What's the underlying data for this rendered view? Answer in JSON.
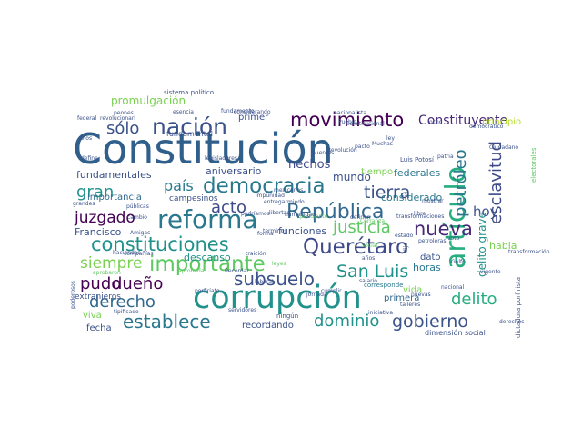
{
  "word_cloud": {
    "words": [
      {
        "text": "Constitución",
        "color": "#2f5f8a"
      },
      {
        "text": "corrupción",
        "color": "#21918c"
      },
      {
        "text": "reforma",
        "color": "#2a788e"
      },
      {
        "text": "artículo",
        "color": "#27ad81"
      },
      {
        "text": "nación",
        "color": "#3b528b"
      },
      {
        "text": "democracia",
        "color": "#2a788e"
      },
      {
        "text": "movimiento",
        "color": "#440154"
      },
      {
        "text": "constituciones",
        "color": "#21918c"
      },
      {
        "text": "Querétaro",
        "color": "#3e4a89"
      },
      {
        "text": "República",
        "color": "#31688e"
      },
      {
        "text": "importante",
        "color": "#5ec962"
      },
      {
        "text": "nueva",
        "color": "#482878"
      },
      {
        "text": "tierra",
        "color": "#3b528b"
      },
      {
        "text": "petróleo",
        "color": "#2a788e"
      },
      {
        "text": "esclavitud",
        "color": "#3e4a89"
      },
      {
        "text": "establece",
        "color": "#2a788e"
      },
      {
        "text": "gobierno",
        "color": "#3b528b"
      },
      {
        "text": "subsuelo",
        "color": "#3b528b"
      },
      {
        "text": "San Luis",
        "color": "#21918c"
      },
      {
        "text": "justicia",
        "color": "#5ec962"
      },
      {
        "text": "pudo",
        "color": "#440154"
      },
      {
        "text": "dueño",
        "color": "#440154"
      },
      {
        "text": "derecho",
        "color": "#31688e"
      },
      {
        "text": "delito",
        "color": "#27ad81"
      },
      {
        "text": "gran",
        "color": "#21918c"
      },
      {
        "text": "juzgado",
        "color": "#440154"
      },
      {
        "text": "acto",
        "color": "#3e4a89"
      },
      {
        "text": "país",
        "color": "#2a788e"
      },
      {
        "text": "sólo",
        "color": "#3b528b"
      },
      {
        "text": "siempre",
        "color": "#7ad151"
      },
      {
        "text": "hoy",
        "color": "#3b528b"
      },
      {
        "text": "dominio",
        "color": "#21918c"
      },
      {
        "text": "Constituyente",
        "color": "#482878"
      },
      {
        "text": "delito grave",
        "color": "#21918c"
      },
      {
        "text": "hechos",
        "color": "#3e4a89"
      },
      {
        "text": "mundo",
        "color": "#3b528b"
      },
      {
        "text": "promulgación",
        "color": "#7ad151"
      },
      {
        "text": "fundamentales",
        "color": "#3b528b"
      },
      {
        "text": "considerado",
        "color": "#2a788e"
      },
      {
        "text": "federales",
        "color": "#2a788e"
      },
      {
        "text": "funciones",
        "color": "#3b528b"
      },
      {
        "text": "aniversario",
        "color": "#3b528b"
      },
      {
        "text": "importancia",
        "color": "#31688e"
      },
      {
        "text": "descanso",
        "color": "#21918c"
      },
      {
        "text": "Francisco",
        "color": "#3b528b"
      },
      {
        "text": "habla",
        "color": "#7ad151"
      },
      {
        "text": "horas",
        "color": "#2a788e"
      },
      {
        "text": "dato",
        "color": "#3b528b"
      },
      {
        "text": "primera",
        "color": "#31688e"
      },
      {
        "text": "vida",
        "color": "#7ad151"
      },
      {
        "text": "viva",
        "color": "#7ad151"
      },
      {
        "text": "fecha",
        "color": "#3b528b"
      },
      {
        "text": "recordando",
        "color": "#3b528b"
      },
      {
        "text": "primer",
        "color": "#3b528b"
      },
      {
        "text": "campesinos",
        "color": "#3b528b"
      },
      {
        "text": "tiempo",
        "color": "#7ad151"
      },
      {
        "text": "extranjeros",
        "color": "#3b528b"
      },
      {
        "text": "fundamental",
        "color": "#3b528b"
      },
      {
        "text": "principio",
        "color": "#b5de2b"
      },
      {
        "text": "dimensión social",
        "color": "#3b528b"
      },
      {
        "text": "sistema político",
        "color": "#3b528b"
      },
      {
        "text": "Luis Potosí",
        "color": "#3b528b"
      },
      {
        "text": "ningún",
        "color": "#3b528b"
      },
      {
        "text": "corresponde",
        "color": "#2a788e"
      },
      {
        "text": "dictadura porfirista",
        "color": "#3b528b"
      },
      {
        "text": "electorales",
        "color": "#5ec962"
      },
      {
        "text": "democrático",
        "color": "#3b528b"
      },
      {
        "text": "Revolución",
        "color": "#3b528b"
      },
      {
        "text": "legisladores",
        "color": "#3b528b"
      },
      {
        "text": "Constitucional",
        "color": "#3b528b"
      },
      {
        "text": "transformaciones",
        "color": "#3b528b"
      },
      {
        "text": "considerando",
        "color": "#3b528b"
      },
      {
        "text": "esencia",
        "color": "#3b528b"
      },
      {
        "text": "revolucionari",
        "color": "#3b528b"
      },
      {
        "text": "federal",
        "color": "#3b528b"
      },
      {
        "text": "haciendas",
        "color": "#3b528b"
      },
      {
        "text": "porfiriato",
        "color": "#3b528b"
      },
      {
        "text": "Ciudadano",
        "color": "#3b528b"
      },
      {
        "text": "petroleras",
        "color": "#3b528b"
      },
      {
        "text": "patria",
        "color": "#3b528b"
      },
      {
        "text": "compañías",
        "color": "#3b528b"
      },
      {
        "text": "tipificado",
        "color": "#3b528b"
      },
      {
        "text": "Golfo",
        "color": "#3b528b"
      },
      {
        "text": "impunidad",
        "color": "#3b528b"
      },
      {
        "text": "peones",
        "color": "#3b528b"
      },
      {
        "text": "Dios",
        "color": "#3b528b"
      },
      {
        "text": "define",
        "color": "#3b528b"
      },
      {
        "text": "aprobaron",
        "color": "#5ec962"
      },
      {
        "text": "poderosos",
        "color": "#3b528b"
      },
      {
        "text": "Amigas",
        "color": "#3b528b"
      },
      {
        "text": "pendiente",
        "color": "#5ec962"
      },
      {
        "text": "aprobada",
        "color": "#5ec962"
      },
      {
        "text": "humanidad",
        "color": "#3b528b"
      },
      {
        "text": "entregar",
        "color": "#3b528b"
      },
      {
        "text": "miedo",
        "color": "#3b528b"
      },
      {
        "text": "grandes",
        "color": "#3b528b"
      },
      {
        "text": "públicas",
        "color": "#3b528b"
      },
      {
        "text": "cambio",
        "color": "#3b528b"
      },
      {
        "text": "podríamos",
        "color": "#3b528b"
      },
      {
        "text": "libre",
        "color": "#3b528b"
      },
      {
        "text": "talleres",
        "color": "#3b528b"
      },
      {
        "text": "servidores",
        "color": "#3b528b"
      },
      {
        "text": "salario",
        "color": "#3b528b"
      },
      {
        "text": "jornada",
        "color": "#3b528b"
      },
      {
        "text": "cumplir",
        "color": "#3b528b"
      },
      {
        "text": "puentes",
        "color": "#3b528b"
      },
      {
        "text": "Muchas",
        "color": "#3b528b"
      },
      {
        "text": "nacionalista",
        "color": "#3b528b"
      },
      {
        "text": "definen",
        "color": "#3b528b"
      },
      {
        "text": "pacto",
        "color": "#3b528b"
      },
      {
        "text": "ley",
        "color": "#3b528b"
      },
      {
        "text": "fundamento",
        "color": "#3b528b"
      },
      {
        "text": "libertad",
        "color": "#3b528b"
      },
      {
        "text": "Recordar",
        "color": "#3b528b"
      },
      {
        "text": "forma",
        "color": "#3b528b"
      },
      {
        "text": "terminos",
        "color": "#3b528b"
      },
      {
        "text": "vigente",
        "color": "#3b528b"
      },
      {
        "text": "mostrar",
        "color": "#3b528b"
      },
      {
        "text": "traición",
        "color": "#3b528b"
      },
      {
        "text": "derechos",
        "color": "#3b528b"
      },
      {
        "text": "estado",
        "color": "#3b528b"
      },
      {
        "text": "ocho",
        "color": "#3b528b"
      },
      {
        "text": "dijo",
        "color": "#3b528b"
      },
      {
        "text": "mexicanos",
        "color": "#3b528b"
      },
      {
        "text": "nuevas",
        "color": "#3b528b"
      },
      {
        "text": "voto",
        "color": "#3b528b"
      },
      {
        "text": "Carranza",
        "color": "#5ec962"
      },
      {
        "text": "social",
        "color": "#5ec962"
      },
      {
        "text": "leyes",
        "color": "#5ec962"
      },
      {
        "text": "transformación",
        "color": "#3b528b"
      },
      {
        "text": "laboral",
        "color": "#3b528b"
      },
      {
        "text": "años",
        "color": "#3b528b"
      },
      {
        "text": "nacional",
        "color": "#3b528b"
      },
      {
        "text": "iniciativa",
        "color": "#3b528b"
      },
      {
        "text": "Pueblo",
        "color": "#3b528b"
      }
    ]
  }
}
